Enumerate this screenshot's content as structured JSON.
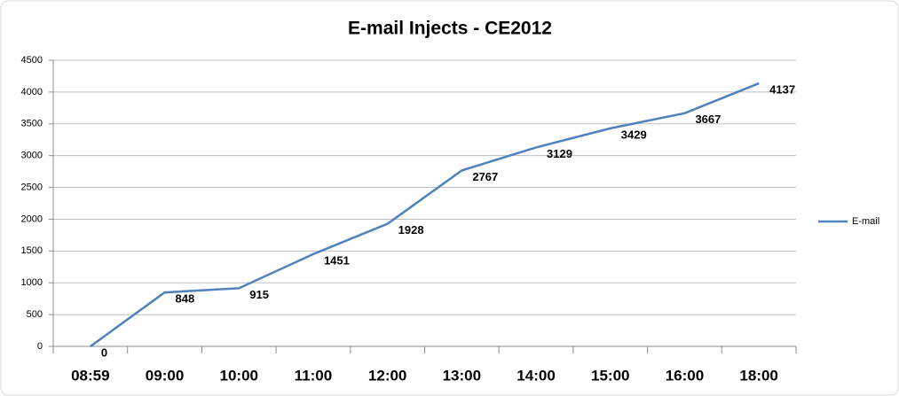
{
  "chart_data": {
    "type": "line",
    "title": "E-mail Injects - CE2012",
    "categories": [
      "08:59",
      "09:00",
      "10:00",
      "11:00",
      "12:00",
      "13:00",
      "14:00",
      "15:00",
      "16:00",
      "18:00"
    ],
    "series": [
      {
        "name": "E-mail",
        "color": "#4f81bd",
        "values": [
          0,
          848,
          915,
          1451,
          1928,
          2767,
          3129,
          3429,
          3667,
          4137
        ]
      }
    ],
    "ylim": [
      0,
      4500
    ],
    "yticks": [
      0,
      500,
      1000,
      1500,
      2000,
      2500,
      3000,
      3500,
      4000,
      4500
    ],
    "grid": true,
    "legend": "right",
    "data_labels": true
  }
}
